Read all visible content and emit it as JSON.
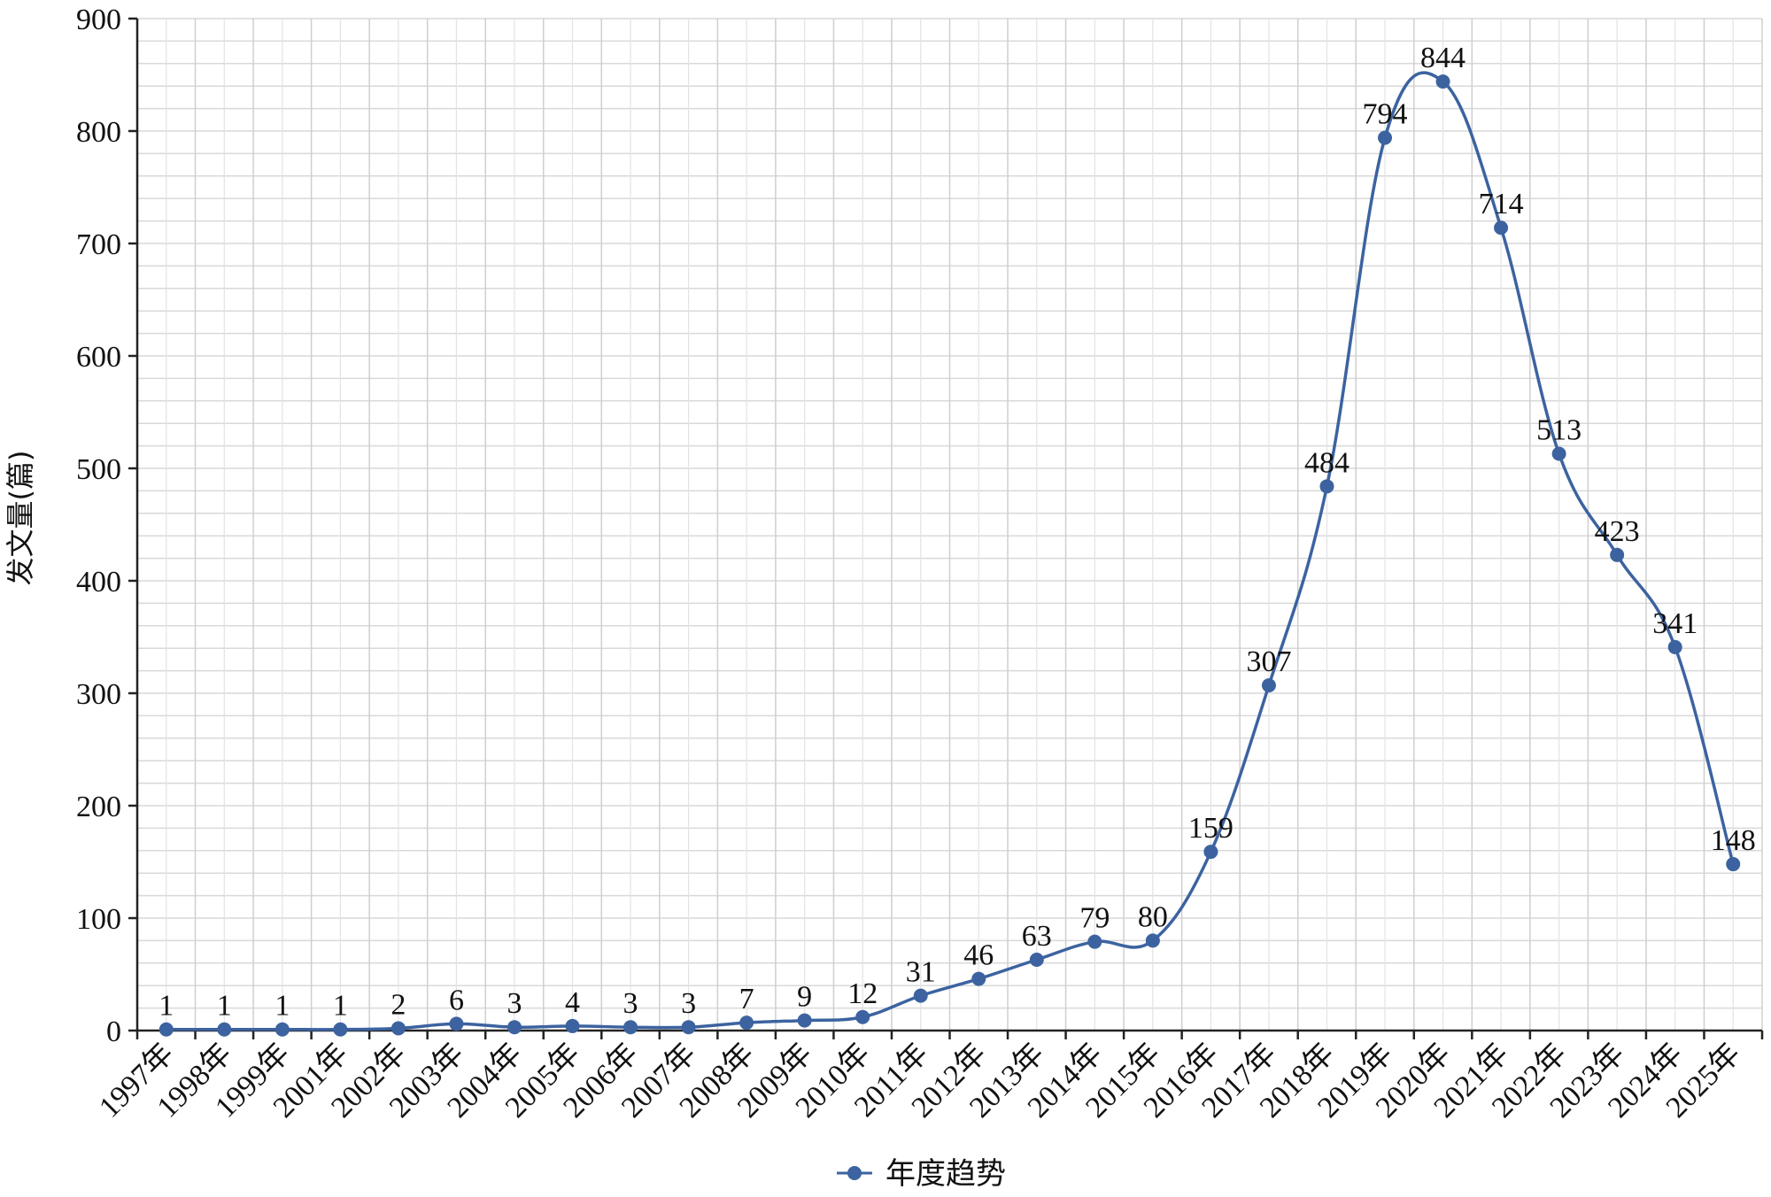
{
  "chart_data": {
    "type": "line",
    "title": "",
    "xlabel": "",
    "ylabel": "发文量(篇)",
    "ylim": [
      0,
      900
    ],
    "yticks": [
      0,
      100,
      200,
      300,
      400,
      500,
      600,
      700,
      800,
      900
    ],
    "grid": true,
    "smooth": true,
    "legend_position": "bottom-center",
    "categories": [
      "1997年",
      "1998年",
      "1999年",
      "2001年",
      "2002年",
      "2003年",
      "2004年",
      "2005年",
      "2006年",
      "2007年",
      "2008年",
      "2009年",
      "2010年",
      "2011年",
      "2012年",
      "2013年",
      "2014年",
      "2015年",
      "2016年",
      "2017年",
      "2018年",
      "2019年",
      "2020年",
      "2021年",
      "2022年",
      "2023年",
      "2024年",
      "2025年"
    ],
    "series": [
      {
        "name": "年度趋势",
        "color": "#3c63a0",
        "values": [
          1,
          1,
          1,
          1,
          2,
          6,
          3,
          4,
          3,
          3,
          7,
          9,
          12,
          31,
          46,
          63,
          79,
          80,
          159,
          307,
          484,
          794,
          844,
          714,
          513,
          423,
          341,
          148
        ]
      }
    ]
  }
}
